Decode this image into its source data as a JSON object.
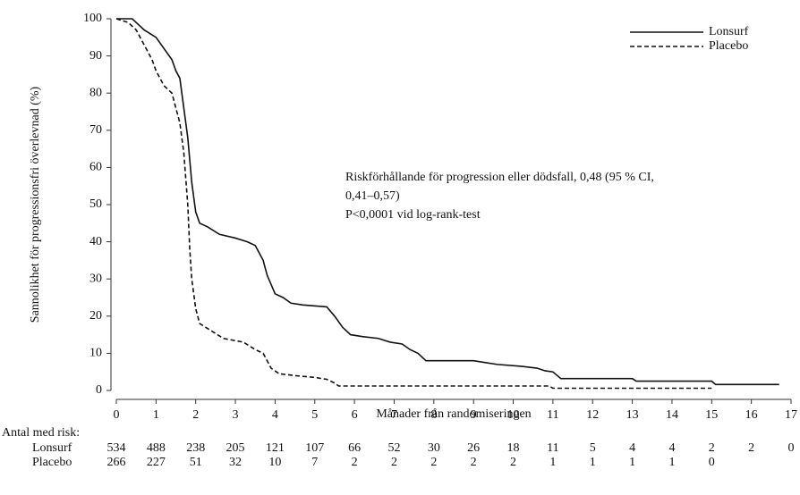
{
  "chart_data": {
    "type": "line",
    "step": true,
    "x_label": "Månader från randomiseringen",
    "y_label": "Sannolikhet för progressionsfri överlevnad (%)",
    "xlim": [
      0,
      17
    ],
    "ylim": [
      0,
      100
    ],
    "xticks": [
      0,
      1,
      2,
      3,
      4,
      5,
      6,
      7,
      8,
      9,
      10,
      11,
      12,
      13,
      14,
      15,
      16,
      17
    ],
    "yticks": [
      0,
      10,
      20,
      30,
      40,
      50,
      60,
      70,
      80,
      90,
      100
    ],
    "legend": "upper right",
    "annotation": [
      "Riskförhållande för progression eller dödsfall, 0,48 (95 % CI,",
      "0,41–0,57)",
      "P<0,0001 vid log-rank-test"
    ],
    "series": [
      {
        "name": "Lonsurf",
        "color": "#111111",
        "dash": "solid",
        "x": [
          0,
          0.4,
          0.5,
          0.7,
          1,
          1.2,
          1.4,
          1.5,
          1.6,
          1.7,
          1.8,
          1.9,
          2,
          2.1,
          2.3,
          2.6,
          3,
          3.3,
          3.5,
          3.7,
          3.8,
          4,
          4.2,
          4.4,
          4.7,
          5.3,
          5.5,
          5.7,
          5.9,
          6.2,
          6.6,
          6.9,
          7.2,
          7.4,
          7.6,
          7.8,
          9,
          9.3,
          9.6,
          10.2,
          10.6,
          10.8,
          11,
          11.2,
          13,
          13.1,
          15,
          15.1,
          16.7
        ],
        "values": [
          100,
          100,
          99,
          97,
          95,
          92,
          89,
          86,
          84,
          76,
          68,
          56,
          48,
          45,
          44,
          42,
          41,
          40,
          39,
          35,
          31,
          26,
          25,
          23.5,
          23,
          22.5,
          20,
          17,
          15,
          14.5,
          14,
          13,
          12.5,
          11,
          10,
          8,
          8,
          7.5,
          7,
          6.5,
          6,
          5.3,
          5,
          3.2,
          3.2,
          2.5,
          2.5,
          1.6,
          1.6
        ]
      },
      {
        "name": "Placebo",
        "color": "#111111",
        "dash": "dashed",
        "x": [
          0,
          0.3,
          0.5,
          0.7,
          0.9,
          1,
          1.2,
          1.4,
          1.5,
          1.6,
          1.7,
          1.8,
          1.85,
          1.9,
          2,
          2.1,
          2.4,
          2.7,
          3.2,
          3.5,
          3.7,
          3.9,
          4.1,
          4.5,
          5,
          5.3,
          5.5,
          5.6,
          10.9,
          11,
          15
        ],
        "values": [
          100,
          99,
          97,
          93,
          89,
          86,
          82,
          80,
          76,
          72,
          64,
          50,
          38,
          30,
          22,
          18,
          16,
          14,
          13,
          11,
          10,
          6,
          4.5,
          4,
          3.5,
          3,
          2,
          1.2,
          1.2,
          0.6,
          0.6
        ]
      }
    ],
    "at_risk": {
      "label": "Antal med risk:",
      "rows": [
        {
          "name": "Lonsurf",
          "values": [
            534,
            488,
            238,
            205,
            121,
            107,
            66,
            52,
            30,
            26,
            18,
            11,
            5,
            4,
            4,
            2,
            2,
            0
          ]
        },
        {
          "name": "Placebo",
          "values": [
            266,
            227,
            51,
            32,
            10,
            7,
            2,
            2,
            2,
            2,
            2,
            1,
            1,
            1,
            1,
            0
          ]
        }
      ]
    }
  }
}
